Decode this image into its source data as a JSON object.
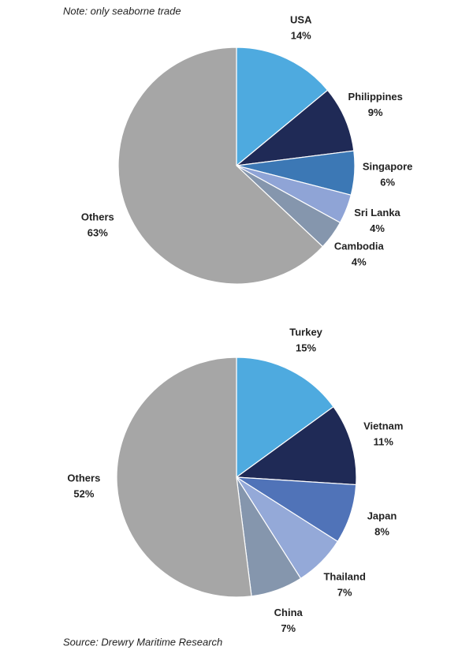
{
  "note": "Note: only seaborne trade",
  "source": "Source: Drewry Maritime Research",
  "chart_data": [
    {
      "type": "pie",
      "categories": [
        "USA",
        "Philippines",
        "Singapore",
        "Sri Lanka",
        "Cambodia",
        "Others"
      ],
      "values": [
        14,
        9,
        6,
        4,
        4,
        63
      ],
      "value_labels": [
        "14%",
        "9%",
        "6%",
        "4%",
        "4%",
        "63%"
      ],
      "colors": [
        "#4eaadf",
        "#1f2a56",
        "#3c78b5",
        "#8fa4d6",
        "#8596ad",
        "#a6a6a6"
      ]
    },
    {
      "type": "pie",
      "categories": [
        "Turkey",
        "Vietnam",
        "Japan",
        "Thailand",
        "China",
        "Others"
      ],
      "values": [
        15,
        11,
        8,
        7,
        7,
        52
      ],
      "value_labels": [
        "15%",
        "11%",
        "8%",
        "7%",
        "7%",
        "52%"
      ],
      "colors": [
        "#4eaadf",
        "#1f2a56",
        "#5073b8",
        "#94a9d8",
        "#8596ad",
        "#a6a6a6"
      ]
    }
  ]
}
